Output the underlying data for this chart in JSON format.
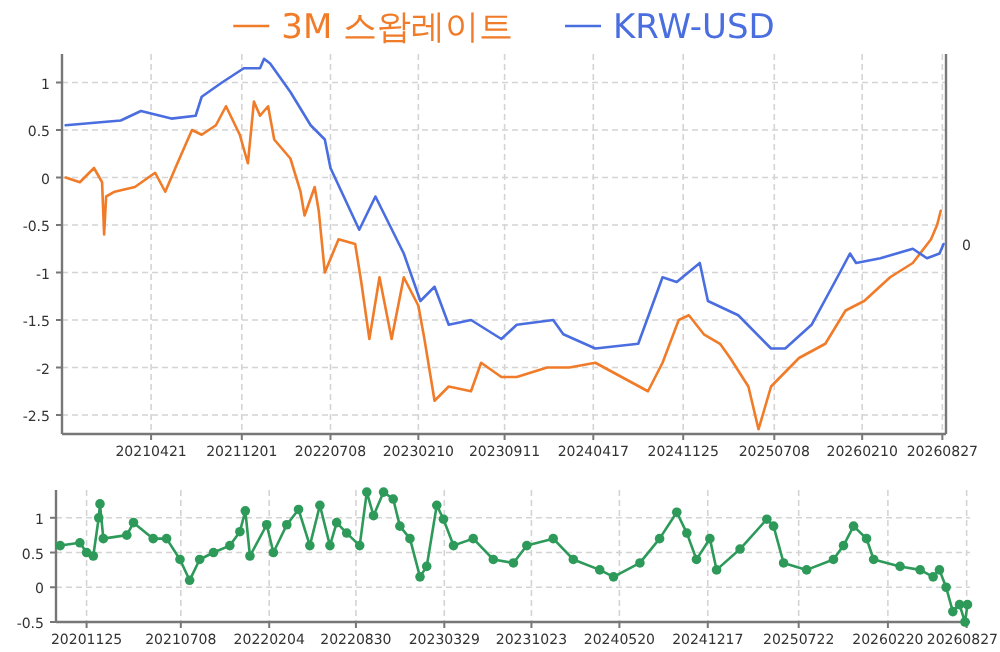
{
  "chart_data": [
    {
      "type": "line",
      "legend": "top",
      "grid": true,
      "xlim": [
        "2020-09-13",
        "2026-09-05"
      ],
      "ylim": [
        -2.7,
        1.3
      ],
      "annotations": [
        "0"
      ],
      "xticks": [
        {
          "value": "2021-04-21",
          "label": "20210421"
        },
        {
          "value": "2021-12-01",
          "label": "20211201"
        },
        {
          "value": "2022-07-08",
          "label": "20220708"
        },
        {
          "value": "2023-02-10",
          "label": "20230210"
        },
        {
          "value": "2023-09-11",
          "label": "20230911"
        },
        {
          "value": "2024-04-17",
          "label": "20240417"
        },
        {
          "value": "2024-11-25",
          "label": "20241125"
        },
        {
          "value": "2025-07-08",
          "label": "20250708"
        },
        {
          "value": "2026-02-10",
          "label": "20260210"
        },
        {
          "value": "2026-08-27",
          "label": "20260827"
        }
      ],
      "yticks": [
        -2.5,
        -2,
        -1.5,
        -1,
        -0.5,
        0,
        0.5,
        1
      ],
      "series": [
        {
          "name": "3M 스왑레이트",
          "color": "#f07c2a",
          "x": [
            "2020-09-22",
            "2020-10-27",
            "2020-12-01",
            "2020-12-21",
            "2020-12-26",
            "2020-12-31",
            "2021-01-21",
            "2021-03-12",
            "2021-05-01",
            "2021-05-26",
            "2021-06-25",
            "2021-07-31",
            "2021-08-24",
            "2021-09-28",
            "2021-10-23",
            "2021-11-26",
            "2021-12-16",
            "2021-12-31",
            "2022-01-15",
            "2022-02-04",
            "2022-02-19",
            "2022-03-31",
            "2022-04-25",
            "2022-05-05",
            "2022-05-30",
            "2022-06-09",
            "2022-06-24",
            "2022-07-28",
            "2022-09-07",
            "2022-09-22",
            "2022-10-12",
            "2022-11-06",
            "2022-12-06",
            "2023-01-05",
            "2023-02-10",
            "2023-02-25",
            "2023-03-22",
            "2023-04-26",
            "2023-06-20",
            "2023-07-15",
            "2023-09-03",
            "2023-10-11",
            "2023-12-25",
            "2024-02-18",
            "2024-04-22",
            "2024-06-26",
            "2024-08-30",
            "2024-10-05",
            "2024-11-14",
            "2024-12-09",
            "2025-01-15",
            "2025-02-24",
            "2025-03-21",
            "2025-05-05",
            "2025-05-30",
            "2025-06-30",
            "2025-09-07",
            "2025-11-11",
            "2025-12-31",
            "2026-02-15",
            "2026-04-20",
            "2026-06-15",
            "2026-07-30",
            "2026-08-14",
            "2026-08-23"
          ],
          "values": [
            0,
            -0.05,
            0.1,
            -0.05,
            -0.6,
            -0.2,
            -0.15,
            -0.1,
            0.05,
            -0.15,
            0.15,
            0.5,
            0.45,
            0.55,
            0.75,
            0.45,
            0.15,
            0.8,
            0.65,
            0.75,
            0.4,
            0.2,
            -0.15,
            -0.4,
            -0.1,
            -0.35,
            -1.0,
            -0.65,
            -0.7,
            -1.1,
            -1.7,
            -1.05,
            -1.7,
            -1.05,
            -1.35,
            -1.7,
            -2.35,
            -2.2,
            -2.25,
            -1.95,
            -2.1,
            -2.1,
            -2.0,
            -2.0,
            -1.95,
            -2.1,
            -2.25,
            -1.95,
            -1.5,
            -1.45,
            -1.65,
            -1.75,
            -1.9,
            -2.2,
            -2.65,
            -2.2,
            -1.9,
            -1.75,
            -1.4,
            -1.3,
            -1.05,
            -0.9,
            -0.65,
            -0.5,
            -0.35
          ]
        },
        {
          "name": "KRW-USD",
          "color": "#4a6ee0",
          "x": [
            "2020-09-22",
            "2021-02-05",
            "2021-03-27",
            "2021-06-10",
            "2021-08-09",
            "2021-08-24",
            "2021-10-13",
            "2021-12-06",
            "2022-01-15",
            "2022-01-25",
            "2022-02-09",
            "2022-03-31",
            "2022-05-20",
            "2022-06-24",
            "2022-07-08",
            "2022-09-17",
            "2022-10-27",
            "2023-01-05",
            "2023-02-15",
            "2023-03-22",
            "2023-04-26",
            "2023-06-20",
            "2023-09-03",
            "2023-10-11",
            "2024-01-09",
            "2024-02-03",
            "2024-04-22",
            "2024-08-06",
            "2024-10-05",
            "2024-11-09",
            "2025-01-05",
            "2025-01-25",
            "2025-04-10",
            "2025-06-30",
            "2025-08-04",
            "2025-10-08",
            "2025-12-17",
            "2026-01-11",
            "2026-01-26",
            "2026-03-27",
            "2026-06-15",
            "2026-07-20",
            "2026-08-20",
            "2026-08-30"
          ],
          "values": [
            0.55,
            0.6,
            0.7,
            0.62,
            0.65,
            0.85,
            1.0,
            1.15,
            1.15,
            1.25,
            1.2,
            0.9,
            0.55,
            0.4,
            0.1,
            -0.55,
            -0.2,
            -0.8,
            -1.3,
            -1.15,
            -1.55,
            -1.5,
            -1.7,
            -1.55,
            -1.5,
            -1.65,
            -1.8,
            -1.75,
            -1.05,
            -1.1,
            -0.9,
            -1.3,
            -1.45,
            -1.8,
            -1.8,
            -1.55,
            -1.0,
            -0.8,
            -0.9,
            -0.85,
            -0.75,
            -0.85,
            -0.8,
            -0.7
          ]
        }
      ]
    },
    {
      "type": "line",
      "grid": true,
      "marker": "circle",
      "xlim": [
        "2020-09-13",
        "2026-09-04"
      ],
      "ylim": [
        -0.5,
        1.4
      ],
      "xticks": [
        {
          "value": "2020-11-25",
          "label": "20201125"
        },
        {
          "value": "2021-07-08",
          "label": "20210708"
        },
        {
          "value": "2022-02-04",
          "label": "20220204"
        },
        {
          "value": "2022-08-30",
          "label": "20220830"
        },
        {
          "value": "2023-03-29",
          "label": "20230329"
        },
        {
          "value": "2023-10-23",
          "label": "20231023"
        },
        {
          "value": "2024-05-20",
          "label": "20240520"
        },
        {
          "value": "2024-12-17",
          "label": "20241217"
        },
        {
          "value": "2025-07-22",
          "label": "20250722"
        },
        {
          "value": "2026-02-20",
          "label": "20260220"
        },
        {
          "value": "2026-08-27",
          "label": "20260827"
        }
      ],
      "yticks": [
        -0.5,
        0,
        0.5,
        1
      ],
      "series": [
        {
          "color": "#2e9a5a",
          "x": [
            "2020-09-23",
            "2020-11-09",
            "2020-11-25",
            "2020-12-11",
            "2020-12-24",
            "2020-12-27",
            "2021-01-04",
            "2021-03-01",
            "2021-03-17",
            "2021-05-03",
            "2021-06-04",
            "2021-07-06",
            "2021-07-29",
            "2021-08-22",
            "2021-09-24",
            "2021-11-02",
            "2021-11-26",
            "2021-12-09",
            "2021-12-20",
            "2022-01-29",
            "2022-02-14",
            "2022-03-18",
            "2022-04-15",
            "2022-05-12",
            "2022-06-05",
            "2022-06-29",
            "2022-07-15",
            "2022-08-08",
            "2022-09-08",
            "2022-09-25",
            "2022-10-11",
            "2022-11-04",
            "2022-11-27",
            "2022-12-13",
            "2023-01-06",
            "2023-01-30",
            "2023-02-15",
            "2023-03-11",
            "2023-03-27",
            "2023-04-20",
            "2023-06-06",
            "2023-07-24",
            "2023-09-10",
            "2023-10-12",
            "2023-12-14",
            "2024-01-31",
            "2024-04-03",
            "2024-05-06",
            "2024-07-08",
            "2024-08-24",
            "2024-10-04",
            "2024-10-28",
            "2024-11-20",
            "2024-12-22",
            "2025-01-07",
            "2025-03-04",
            "2025-05-07",
            "2025-05-23",
            "2025-06-16",
            "2025-08-10",
            "2025-10-13",
            "2025-11-06",
            "2025-11-30",
            "2025-12-31",
            "2026-01-17",
            "2026-03-21",
            "2026-05-08",
            "2026-06-08",
            "2026-06-23",
            "2026-07-09",
            "2026-07-25",
            "2026-08-10",
            "2026-08-23",
            "2026-08-29"
          ],
          "values": [
            0.6,
            0.64,
            0.5,
            0.45,
            1.0,
            1.2,
            0.7,
            0.75,
            0.93,
            0.7,
            0.7,
            0.4,
            0.1,
            0.4,
            0.5,
            0.6,
            0.8,
            1.1,
            0.45,
            0.9,
            0.5,
            0.9,
            1.12,
            0.6,
            1.18,
            0.6,
            0.93,
            0.78,
            0.6,
            1.37,
            1.03,
            1.37,
            1.27,
            0.88,
            0.7,
            0.15,
            0.3,
            1.18,
            0.98,
            0.6,
            0.7,
            0.4,
            0.35,
            0.6,
            0.7,
            0.4,
            0.25,
            0.15,
            0.35,
            0.7,
            1.08,
            0.78,
            0.4,
            0.7,
            0.25,
            0.55,
            0.98,
            0.88,
            0.35,
            0.25,
            0.4,
            0.6,
            0.88,
            0.7,
            0.4,
            0.3,
            0.25,
            0.15,
            0.25,
            0,
            -0.35,
            -0.25,
            -0.5,
            -0.25
          ]
        }
      ]
    }
  ]
}
